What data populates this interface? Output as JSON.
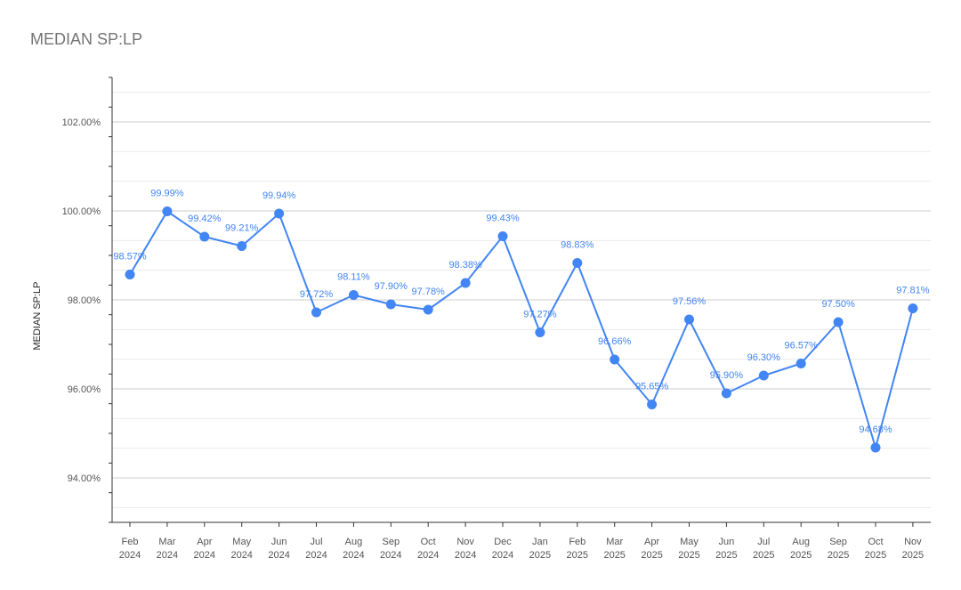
{
  "chart_data": {
    "type": "line",
    "title": "MEDIAN SP:LP",
    "xlabel": "",
    "ylabel": "MEDIAN SP:LP",
    "ylim": [
      93.0,
      103.0
    ],
    "yticks": [
      "102.00%",
      "100.00%",
      "98.00%",
      "96.00%",
      "94.00%"
    ],
    "grid": true,
    "legend": "none",
    "color": "#4285f4",
    "categories": [
      [
        "Feb",
        "2024"
      ],
      [
        "Mar",
        "2024"
      ],
      [
        "Apr",
        "2024"
      ],
      [
        "May",
        "2024"
      ],
      [
        "Jun",
        "2024"
      ],
      [
        "Jul",
        "2024"
      ],
      [
        "Aug",
        "2024"
      ],
      [
        "Sep",
        "2024"
      ],
      [
        "Oct",
        "2024"
      ],
      [
        "Nov",
        "2024"
      ],
      [
        "Dec",
        "2024"
      ],
      [
        "Jan",
        "2025"
      ],
      [
        "Feb",
        "2025"
      ],
      [
        "Mar",
        "2025"
      ],
      [
        "Apr",
        "2025"
      ],
      [
        "May",
        "2025"
      ],
      [
        "Jun",
        "2025"
      ],
      [
        "Jul",
        "2025"
      ],
      [
        "Aug",
        "2025"
      ],
      [
        "Sep",
        "2025"
      ],
      [
        "Oct",
        "2025"
      ],
      [
        "Nov",
        "2025"
      ]
    ],
    "values": [
      98.57,
      99.99,
      99.42,
      99.21,
      99.94,
      97.72,
      98.11,
      97.9,
      97.78,
      98.38,
      99.43,
      97.27,
      98.83,
      96.66,
      95.65,
      97.56,
      95.9,
      96.3,
      96.57,
      97.5,
      94.68,
      97.81
    ],
    "data_labels": [
      "98.57%",
      "99.99%",
      "99.42%",
      "99.21%",
      "99.94%",
      "97.72%",
      "98.11%",
      "97.90%",
      "97.78%",
      "98.38%",
      "99.43%",
      "97.27%",
      "98.83%",
      "96.66%",
      "95.65%",
      "97.56%",
      "95.90%",
      "96.30%",
      "96.57%",
      "97.50%",
      "94.68%",
      "97.81%"
    ]
  }
}
